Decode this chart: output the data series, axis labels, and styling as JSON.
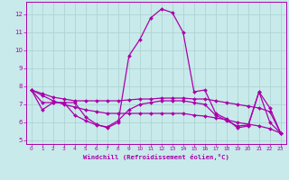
{
  "title": "",
  "xlabel": "Windchill (Refroidissement éolien,°C)",
  "bg_color": "#c8eaea",
  "grid_color": "#aed4d4",
  "line_color": "#aa00aa",
  "spine_color": "#aa00aa",
  "xlim": [
    -0.5,
    23.5
  ],
  "ylim": [
    4.8,
    12.7
  ],
  "yticks": [
    5,
    6,
    7,
    8,
    9,
    10,
    11,
    12
  ],
  "xticks": [
    0,
    1,
    2,
    3,
    4,
    5,
    6,
    7,
    8,
    9,
    10,
    11,
    12,
    13,
    14,
    15,
    16,
    17,
    18,
    19,
    20,
    21,
    22,
    23
  ],
  "series1_x": [
    0,
    1,
    2,
    3,
    4,
    5,
    6,
    7,
    8,
    9,
    10,
    11,
    12,
    13,
    14,
    15,
    16,
    17,
    18,
    19,
    20,
    21,
    22,
    23
  ],
  "series1_y": [
    7.8,
    6.7,
    7.1,
    7.1,
    7.1,
    6.3,
    5.9,
    5.7,
    6.0,
    9.7,
    10.6,
    11.8,
    12.3,
    12.1,
    11.0,
    7.7,
    7.8,
    6.5,
    6.2,
    5.7,
    5.8,
    7.7,
    6.8,
    5.4
  ],
  "series2_x": [
    0,
    1,
    2,
    3,
    4,
    5,
    6,
    7,
    8,
    9,
    10,
    11,
    12,
    13,
    14,
    15,
    16,
    17,
    18,
    19,
    20,
    21,
    22,
    23
  ],
  "series2_y": [
    7.8,
    7.6,
    7.4,
    7.3,
    7.2,
    7.2,
    7.2,
    7.2,
    7.2,
    7.25,
    7.3,
    7.3,
    7.35,
    7.35,
    7.35,
    7.3,
    7.3,
    7.2,
    7.1,
    7.0,
    6.9,
    6.8,
    6.6,
    5.4
  ],
  "series3_x": [
    0,
    1,
    2,
    3,
    4,
    5,
    6,
    7,
    8,
    9,
    10,
    11,
    12,
    13,
    14,
    15,
    16,
    17,
    18,
    19,
    20,
    21,
    22,
    23
  ],
  "series3_y": [
    7.8,
    7.5,
    7.2,
    7.0,
    6.85,
    6.7,
    6.6,
    6.5,
    6.5,
    6.5,
    6.5,
    6.5,
    6.5,
    6.5,
    6.5,
    6.4,
    6.35,
    6.25,
    6.15,
    6.0,
    5.9,
    5.8,
    5.65,
    5.4
  ],
  "series4_x": [
    0,
    1,
    2,
    3,
    4,
    5,
    6,
    7,
    8,
    9,
    10,
    11,
    12,
    13,
    14,
    15,
    16,
    17,
    18,
    19,
    20,
    21,
    22,
    23
  ],
  "series4_y": [
    7.8,
    7.1,
    7.1,
    7.1,
    6.4,
    6.1,
    5.85,
    5.75,
    6.1,
    6.7,
    7.0,
    7.1,
    7.2,
    7.2,
    7.2,
    7.1,
    7.0,
    6.4,
    6.1,
    5.8,
    5.85,
    7.7,
    6.0,
    5.4
  ]
}
